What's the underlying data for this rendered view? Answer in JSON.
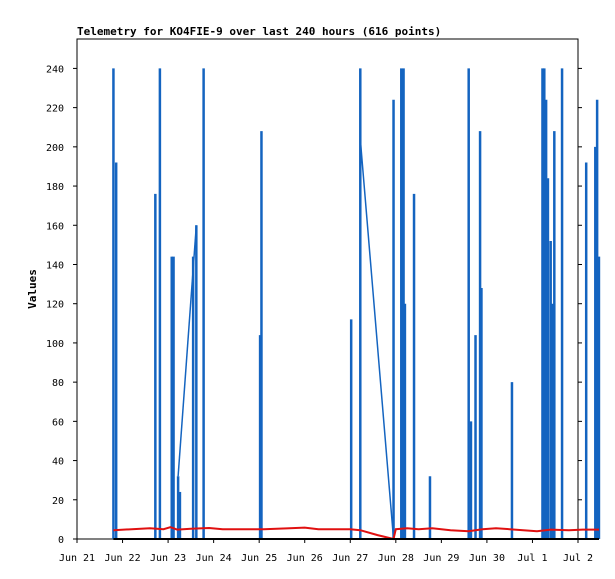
{
  "chart_data": {
    "type": "line",
    "title": "Telemetry for KO4FIE-9 over last 240 hours (616 points)",
    "ylabel": "Values",
    "xlabel": "",
    "x_ticks": [
      "Jun 21",
      "Jun 22",
      "Jun 23",
      "Jun 24",
      "Jun 25",
      "Jun 26",
      "Jun 27",
      "Jun 28",
      "Jun 29",
      "Jun 30",
      "Jul 1",
      "Jul 2"
    ],
    "y_ticks": [
      0,
      20,
      40,
      60,
      80,
      100,
      120,
      140,
      160,
      180,
      200,
      220,
      240
    ],
    "xlim_days": [
      0,
      11
    ],
    "ylim": [
      0,
      255
    ],
    "grid": false,
    "series": [
      {
        "color": "#1464c0",
        "style": "spikes",
        "points": [
          [
            0.8,
            240
          ],
          [
            0.86,
            192
          ],
          [
            1.72,
            176
          ],
          [
            1.82,
            240
          ],
          [
            2.08,
            144
          ],
          [
            2.12,
            144
          ],
          [
            2.22,
            32
          ],
          [
            2.26,
            24
          ],
          [
            2.55,
            144
          ],
          [
            2.62,
            160
          ],
          [
            2.78,
            240
          ],
          [
            4.02,
            104
          ],
          [
            4.05,
            208
          ],
          [
            6.02,
            112
          ],
          [
            6.22,
            240
          ],
          [
            6.95,
            224
          ],
          [
            7.12,
            240
          ],
          [
            7.17,
            240
          ],
          [
            7.2,
            120
          ],
          [
            7.4,
            176
          ],
          [
            7.75,
            32
          ],
          [
            8.6,
            240
          ],
          [
            8.65,
            60
          ],
          [
            8.75,
            104
          ],
          [
            8.85,
            208
          ],
          [
            8.88,
            128
          ],
          [
            9.55,
            80
          ],
          [
            10.22,
            240
          ],
          [
            10.26,
            240
          ],
          [
            10.3,
            224
          ],
          [
            10.34,
            184
          ],
          [
            10.4,
            152
          ],
          [
            10.44,
            120
          ],
          [
            10.48,
            208
          ],
          [
            10.65,
            240
          ],
          [
            11.18,
            192
          ],
          [
            11.38,
            200
          ],
          [
            11.42,
            224
          ],
          [
            11.46,
            144
          ]
        ],
        "ramps": [
          [
            [
              2.22,
              32
            ],
            [
              2.62,
              160
            ]
          ],
          [
            [
              6.22,
              204
            ],
            [
              6.95,
              0
            ]
          ]
        ]
      },
      {
        "color": "#e01010",
        "style": "line",
        "points": [
          [
            0.8,
            4.5
          ],
          [
            1.2,
            5
          ],
          [
            1.6,
            5.5
          ],
          [
            1.9,
            5
          ],
          [
            2.05,
            6
          ],
          [
            2.2,
            4.8
          ],
          [
            2.5,
            5.2
          ],
          [
            2.9,
            5.6
          ],
          [
            3.2,
            5
          ],
          [
            3.6,
            5
          ],
          [
            4.1,
            5
          ],
          [
            4.6,
            5.4
          ],
          [
            5.0,
            5.8
          ],
          [
            5.3,
            5
          ],
          [
            5.7,
            5
          ],
          [
            6.0,
            5
          ],
          [
            6.22,
            4.5
          ],
          [
            6.6,
            2
          ],
          [
            6.95,
            0
          ],
          [
            7.0,
            5
          ],
          [
            7.25,
            5.5
          ],
          [
            7.5,
            5
          ],
          [
            7.8,
            5.5
          ],
          [
            8.2,
            4.5
          ],
          [
            8.6,
            4
          ],
          [
            8.9,
            5
          ],
          [
            9.2,
            5.5
          ],
          [
            9.5,
            5
          ],
          [
            9.8,
            4.5
          ],
          [
            10.1,
            4
          ],
          [
            10.4,
            4.8
          ],
          [
            10.8,
            4.5
          ],
          [
            11.1,
            4.8
          ],
          [
            11.46,
            4.8
          ]
        ]
      },
      {
        "color": "#000000",
        "style": "line",
        "points": [
          [
            0.8,
            0
          ],
          [
            11.46,
            0
          ]
        ]
      }
    ]
  }
}
